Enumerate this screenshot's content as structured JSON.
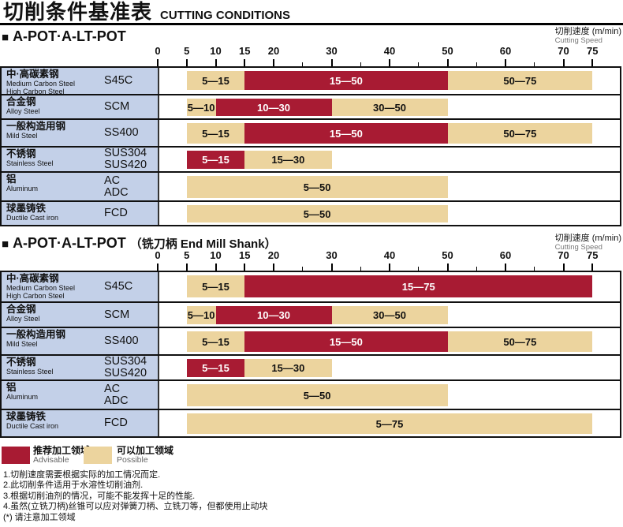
{
  "page": {
    "title_cn": "切削条件基准表",
    "title_en": "CUTTING CONDITIONS"
  },
  "ui": {
    "section_marker": "■"
  },
  "colors": {
    "advisable": "#a81b33",
    "possible": "#ecd49e",
    "material_bg": "#c3d0e8",
    "border": "#111111"
  },
  "axis": {
    "unit_cn": "切削速度 (m/min)",
    "unit_en": "Cutting Speed",
    "min": 0,
    "max": 75,
    "major_ticks": [
      0,
      5,
      10,
      15,
      20,
      30,
      40,
      50,
      60,
      70,
      75
    ],
    "minor_ticks": [
      25,
      35,
      45,
      55,
      65
    ]
  },
  "legend": [
    {
      "zone": "advisable",
      "color": "#a81b33",
      "label_cn": "推荐加工领域",
      "label_en": "Advisable"
    },
    {
      "zone": "possible",
      "color": "#ecd49e",
      "label_cn": "可以加工领域",
      "label_en": "Possible"
    }
  ],
  "notes": [
    "1.切削速度需要根据实际的加工情况而定.",
    "2.此切削条件适用于水溶性切削油剂.",
    "3.根据切削油剂的情况，可能不能发挥十足的性能.",
    "4.虽然(立铣刀柄)丝锥可以应对弹簧刀柄、立铣刀等，但都使用止动块",
    "(*) 请注意加工领域"
  ],
  "sections": [
    {
      "title": "A-POT·A-LT-POT",
      "suffix": "",
      "rows": [
        {
          "material_cn": "中·高碳素钢",
          "material_en": [
            "Medium Carbon Steel",
            "High Carbon Steel"
          ],
          "grades": [
            "S45C"
          ],
          "segments": [
            {
              "from": 5,
              "to": 15,
              "zone": "possible",
              "label": "5—15"
            },
            {
              "from": 15,
              "to": 50,
              "zone": "advisable",
              "label": "15—50"
            },
            {
              "from": 50,
              "to": 75,
              "zone": "possible",
              "label": "50—75"
            }
          ]
        },
        {
          "material_cn": "合金钢",
          "material_en": [
            "Alloy Steel"
          ],
          "grades": [
            "SCM"
          ],
          "segments": [
            {
              "from": 5,
              "to": 10,
              "zone": "possible",
              "label": "5—10"
            },
            {
              "from": 10,
              "to": 30,
              "zone": "advisable",
              "label": "10—30"
            },
            {
              "from": 30,
              "to": 50,
              "zone": "possible",
              "label": "30—50"
            }
          ]
        },
        {
          "material_cn": "一般构造用钢",
          "material_en": [
            "Mild Steel"
          ],
          "grades": [
            "SS400"
          ],
          "segments": [
            {
              "from": 5,
              "to": 15,
              "zone": "possible",
              "label": "5—15"
            },
            {
              "from": 15,
              "to": 50,
              "zone": "advisable",
              "label": "15—50"
            },
            {
              "from": 50,
              "to": 75,
              "zone": "possible",
              "label": "50—75"
            }
          ]
        },
        {
          "material_cn": "不锈钢",
          "material_en": [
            "Stainless Steel"
          ],
          "grades": [
            "SUS304",
            "SUS420"
          ],
          "segments": [
            {
              "from": 5,
              "to": 15,
              "zone": "advisable",
              "label": "5—15"
            },
            {
              "from": 15,
              "to": 30,
              "zone": "possible",
              "label": "15—30"
            }
          ]
        },
        {
          "material_cn": "铝",
          "material_en": [
            "Aluminum"
          ],
          "grades": [
            "AC",
            "ADC"
          ],
          "segments": [
            {
              "from": 5,
              "to": 50,
              "zone": "possible",
              "label": "5—50"
            }
          ]
        },
        {
          "material_cn": "球墨铸铁",
          "material_en": [
            "Ductile Cast iron"
          ],
          "grades": [
            "FCD"
          ],
          "segments": [
            {
              "from": 5,
              "to": 50,
              "zone": "possible",
              "label": "5—50"
            }
          ]
        }
      ]
    },
    {
      "title": "A-POT·A-LT-POT",
      "suffix": "（铣刀柄 End Mill Shank）",
      "rows": [
        {
          "material_cn": "中·高碳素钢",
          "material_en": [
            "Medium Carbon Steel",
            "High Carbon Steel"
          ],
          "grades": [
            "S45C"
          ],
          "segments": [
            {
              "from": 5,
              "to": 15,
              "zone": "possible",
              "label": "5—15"
            },
            {
              "from": 15,
              "to": 75,
              "zone": "advisable",
              "label": "15—75"
            }
          ]
        },
        {
          "material_cn": "合金钢",
          "material_en": [
            "Alloy Steel"
          ],
          "grades": [
            "SCM"
          ],
          "segments": [
            {
              "from": 5,
              "to": 10,
              "zone": "possible",
              "label": "5—10"
            },
            {
              "from": 10,
              "to": 30,
              "zone": "advisable",
              "label": "10—30"
            },
            {
              "from": 30,
              "to": 50,
              "zone": "possible",
              "label": "30—50"
            }
          ]
        },
        {
          "material_cn": "一般构造用钢",
          "material_en": [
            "Mild Steel"
          ],
          "grades": [
            "SS400"
          ],
          "segments": [
            {
              "from": 5,
              "to": 15,
              "zone": "possible",
              "label": "5—15"
            },
            {
              "from": 15,
              "to": 50,
              "zone": "advisable",
              "label": "15—50"
            },
            {
              "from": 50,
              "to": 75,
              "zone": "possible",
              "label": "50—75"
            }
          ]
        },
        {
          "material_cn": "不锈钢",
          "material_en": [
            "Stainless Steel"
          ],
          "grades": [
            "SUS304",
            "SUS420"
          ],
          "segments": [
            {
              "from": 5,
              "to": 15,
              "zone": "advisable",
              "label": "5—15"
            },
            {
              "from": 15,
              "to": 30,
              "zone": "possible",
              "label": "15—30"
            }
          ]
        },
        {
          "material_cn": "铝",
          "material_en": [
            "Aluminum"
          ],
          "grades": [
            "AC",
            "ADC"
          ],
          "segments": [
            {
              "from": 5,
              "to": 50,
              "zone": "possible",
              "label": "5—50"
            }
          ]
        },
        {
          "material_cn": "球墨铸铁",
          "material_en": [
            "Ductile Cast iron"
          ],
          "grades": [
            "FCD"
          ],
          "segments": [
            {
              "from": 5,
              "to": 75,
              "zone": "possible",
              "label": "5—75"
            }
          ]
        }
      ]
    }
  ],
  "chart_data": [
    {
      "type": "bar",
      "subtype": "horizontal-range-bars",
      "title": "A-POT·A-LT-POT",
      "xlabel": "切削速度 (m/min) Cutting Speed",
      "xlim": [
        0,
        75
      ],
      "xticks": [
        0,
        5,
        10,
        15,
        20,
        30,
        40,
        50,
        60,
        70,
        75
      ],
      "categories": [
        "S45C",
        "SCM",
        "SS400",
        "SUS304/SUS420",
        "AC/ADC",
        "FCD"
      ],
      "series": [
        {
          "name": "推荐加工领域 Advisable",
          "ranges": [
            [
              15,
              50
            ],
            [
              10,
              30
            ],
            [
              15,
              50
            ],
            [
              5,
              15
            ],
            null,
            null
          ]
        },
        {
          "name": "可以加工领域 Possible",
          "ranges": [
            [
              [
                5,
                15
              ],
              [
                50,
                75
              ]
            ],
            [
              [
                5,
                10
              ],
              [
                30,
                50
              ]
            ],
            [
              [
                5,
                15
              ],
              [
                50,
                75
              ]
            ],
            [
              [
                15,
                30
              ]
            ],
            [
              [
                5,
                50
              ]
            ],
            [
              [
                5,
                50
              ]
            ]
          ]
        }
      ]
    },
    {
      "type": "bar",
      "subtype": "horizontal-range-bars",
      "title": "A-POT·A-LT-POT（铣刀柄 End Mill Shank）",
      "xlabel": "切削速度 (m/min) Cutting Speed",
      "xlim": [
        0,
        75
      ],
      "xticks": [
        0,
        5,
        10,
        15,
        20,
        30,
        40,
        50,
        60,
        70,
        75
      ],
      "categories": [
        "S45C",
        "SCM",
        "SS400",
        "SUS304/SUS420",
        "AC/ADC",
        "FCD"
      ],
      "series": [
        {
          "name": "推荐加工领域 Advisable",
          "ranges": [
            [
              15,
              75
            ],
            [
              10,
              30
            ],
            [
              15,
              50
            ],
            [
              5,
              15
            ],
            null,
            null
          ]
        },
        {
          "name": "可以加工领域 Possible",
          "ranges": [
            [
              [
                5,
                15
              ]
            ],
            [
              [
                5,
                10
              ],
              [
                30,
                50
              ]
            ],
            [
              [
                5,
                15
              ],
              [
                50,
                75
              ]
            ],
            [
              [
                15,
                30
              ]
            ],
            [
              [
                5,
                50
              ]
            ],
            [
              [
                5,
                75
              ]
            ]
          ]
        }
      ]
    }
  ]
}
